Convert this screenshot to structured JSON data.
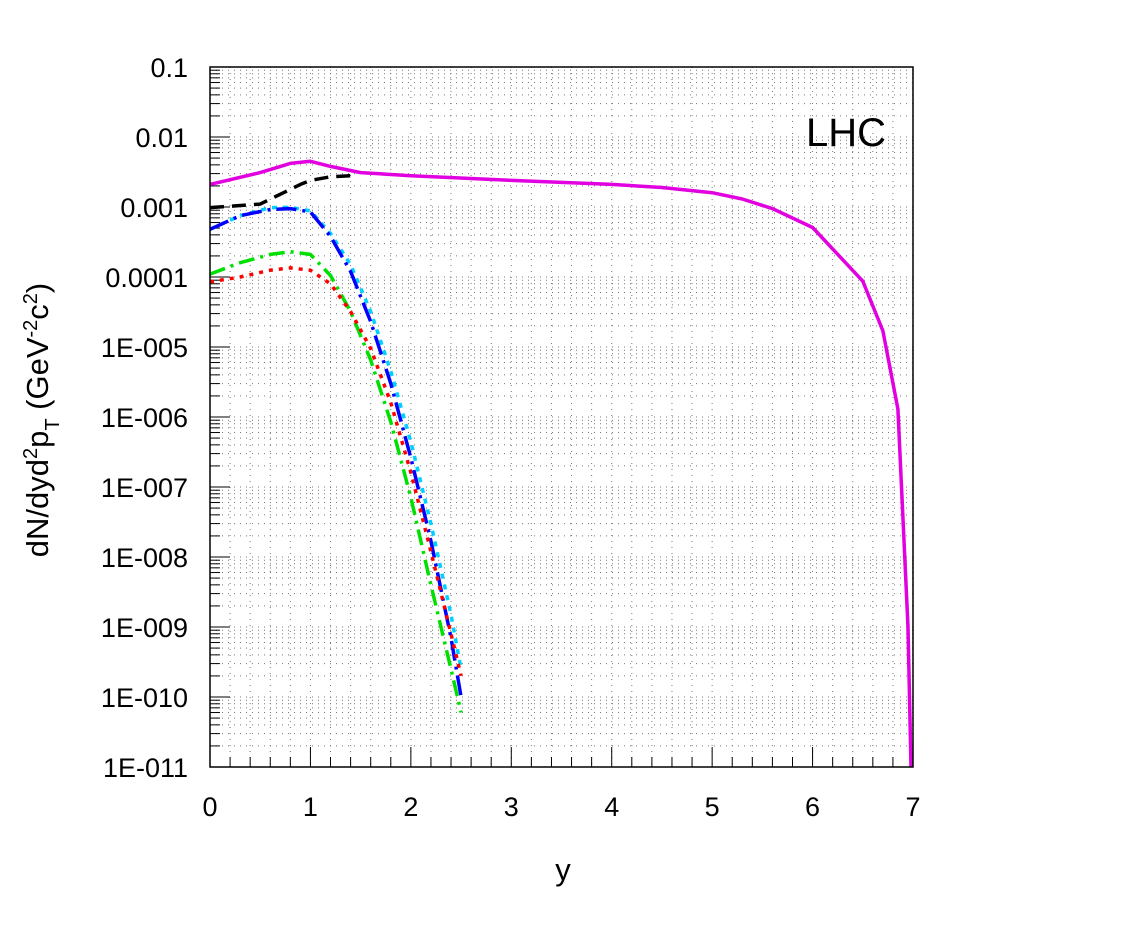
{
  "chart_data": {
    "type": "line",
    "title": "",
    "xlabel": "y",
    "ylabel": {
      "base": "dN/dyd",
      "sup1": "2",
      "mid": "p",
      "sub": "T",
      "unit_open": " (GeV",
      "sup2": "-2",
      "unit_mid": "c",
      "sup3": "2",
      "unit_close": ")"
    },
    "ylabel_text": "dN/dyd2pT (GeV-2c2)",
    "annotation": "LHC",
    "xlim": [
      0,
      7
    ],
    "ylim": [
      1e-11,
      0.1
    ],
    "yscale": "log",
    "grid": true,
    "x_ticks": [
      {
        "value": 0,
        "label": "0"
      },
      {
        "value": 1,
        "label": "1"
      },
      {
        "value": 2,
        "label": "2"
      },
      {
        "value": 3,
        "label": "3"
      },
      {
        "value": 4,
        "label": "4"
      },
      {
        "value": 5,
        "label": "5"
      },
      {
        "value": 6,
        "label": "6"
      },
      {
        "value": 7,
        "label": "7"
      }
    ],
    "y_ticks": [
      {
        "value": 0.1,
        "label": "0.1"
      },
      {
        "value": 0.01,
        "label": "0.01"
      },
      {
        "value": 0.001,
        "label": "0.001"
      },
      {
        "value": 0.0001,
        "label": "0.0001"
      },
      {
        "value": 1e-05,
        "label": "1E-005"
      },
      {
        "value": 1e-06,
        "label": "1E-006"
      },
      {
        "value": 1e-07,
        "label": "1E-007"
      },
      {
        "value": 1e-08,
        "label": "1E-008"
      },
      {
        "value": 1e-09,
        "label": "1E-009"
      },
      {
        "value": 1e-10,
        "label": "1E-010"
      },
      {
        "value": 1e-11,
        "label": "1E-011"
      }
    ],
    "series": [
      {
        "color": "#e000e0",
        "dash": "solid",
        "x": [
          0,
          0.5,
          0.8,
          1.0,
          1.2,
          1.5,
          2.0,
          3.0,
          4.0,
          4.5,
          5.0,
          5.3,
          5.6,
          6.0,
          6.5,
          6.7,
          6.85,
          6.95,
          6.98
        ],
        "y": [
          0.0021,
          0.0031,
          0.0042,
          0.0045,
          0.0038,
          0.0031,
          0.0028,
          0.0024,
          0.0021,
          0.0019,
          0.0016,
          0.0013,
          0.00095,
          0.00051,
          8.7e-05,
          1.7e-05,
          1.3e-06,
          1e-09,
          1e-11
        ]
      },
      {
        "color": "#000000",
        "dash": "longdash",
        "x": [
          0,
          0.5,
          0.9,
          1.0,
          1.2,
          1.4
        ],
        "y": [
          0.00098,
          0.0011,
          0.0021,
          0.0024,
          0.0027,
          0.0028
        ]
      },
      {
        "color": "#00d0ff",
        "dash": "dotted",
        "x": [
          0,
          0.3,
          0.6,
          0.8,
          1.0,
          1.2,
          1.4,
          1.6,
          1.8,
          2.0,
          2.2,
          2.4,
          2.5
        ],
        "y": [
          0.00048,
          0.00075,
          0.00098,
          0.00099,
          0.00088,
          0.00042,
          0.00015,
          3.2e-05,
          4.5e-06,
          4.4e-07,
          3e-08,
          1.5e-09,
          2.5e-10
        ]
      },
      {
        "color": "#0000ff",
        "dash": "longdashdot",
        "x": [
          0,
          0.3,
          0.6,
          0.8,
          1.0,
          1.2,
          1.4,
          1.6,
          1.8,
          2.0,
          2.2,
          2.4,
          2.5
        ],
        "y": [
          0.00048,
          0.00075,
          0.00092,
          0.00095,
          0.00085,
          0.00038,
          0.00012,
          2.3e-05,
          3e-06,
          2.6e-07,
          1.7e-08,
          7e-10,
          1e-10
        ]
      },
      {
        "color": "#00e000",
        "dash": "dashdot",
        "x": [
          0,
          0.3,
          0.6,
          0.8,
          1.0,
          1.2,
          1.4,
          1.6,
          1.8,
          2.0,
          2.2,
          2.4,
          2.5
        ],
        "y": [
          0.00011,
          0.00016,
          0.00021,
          0.00023,
          0.00021,
          0.000105,
          3.2e-05,
          6.5e-06,
          8.5e-07,
          7e-08,
          4e-09,
          2.5e-10,
          6e-11
        ]
      },
      {
        "color": "#ff0000",
        "dash": "shortdot",
        "x": [
          0,
          0.3,
          0.6,
          0.8,
          1.0,
          1.2,
          1.4,
          1.6,
          1.8,
          2.0,
          2.2,
          2.4,
          2.5
        ],
        "y": [
          8.5e-05,
          0.0001,
          0.000125,
          0.000135,
          0.000125,
          8e-05,
          3.2e-05,
          9.5e-06,
          1.6e-06,
          1.6e-07,
          1.2e-08,
          8e-10,
          2e-10
        ]
      }
    ]
  }
}
